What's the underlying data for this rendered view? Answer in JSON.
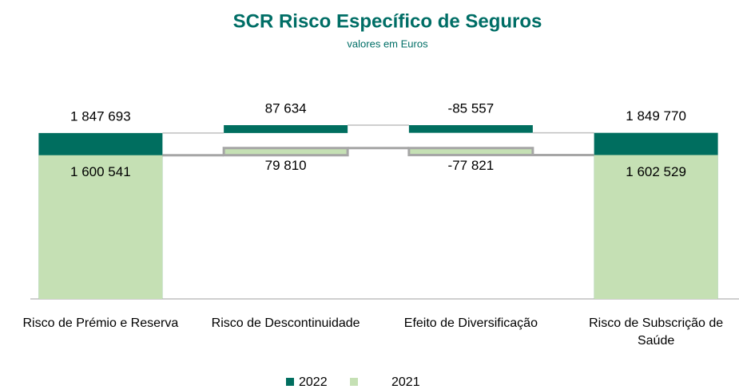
{
  "chart_data": {
    "type": "waterfall",
    "title": "SCR Risco Específico de Seguros",
    "subtitle": "valores em Euros",
    "categories": [
      "Risco de Prémio e Reserva",
      "Risco de Descontinuidade",
      "Efeito de Diversificação",
      "Risco de Subscrição de Saúde"
    ],
    "series": [
      {
        "name": "2022",
        "color": "#006e5f",
        "values": [
          1847693,
          87634,
          -85557,
          1849770
        ],
        "value_labels": [
          "1 847 693",
          "87 634",
          "-85 557",
          "1 849 770"
        ]
      },
      {
        "name": "2021",
        "color": "#c5e0b4",
        "values": [
          1600541,
          79810,
          -77821,
          1602529
        ],
        "value_labels": [
          "1 600 541",
          "79 810",
          "-77 821",
          "1 602 529"
        ]
      }
    ]
  }
}
